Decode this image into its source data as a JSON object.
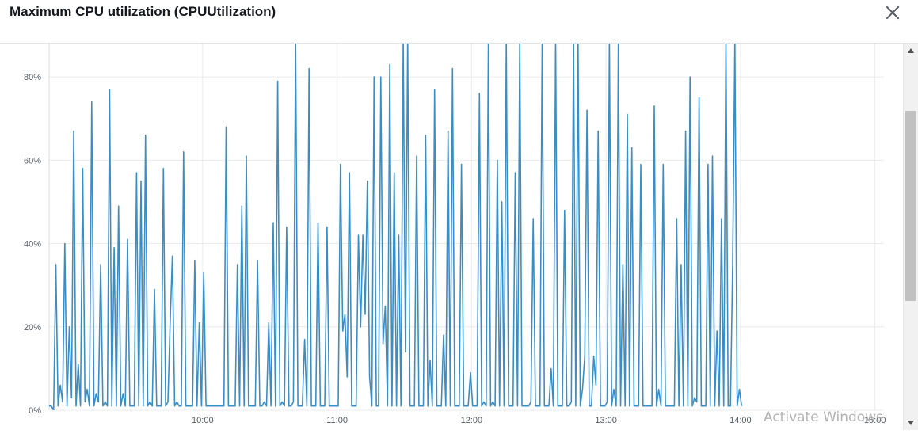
{
  "header": {
    "title": "Maximum CPU utilization (CPUUtilization)",
    "close_icon": "close-icon"
  },
  "watermark": "Activate Windows",
  "colors": {
    "line": "#3a8ec6",
    "grid": "#ebebeb",
    "axis_text": "#545b64"
  },
  "chart_data": {
    "type": "line",
    "title": "",
    "xlabel": "",
    "ylabel": "",
    "x_unit": "minutes",
    "x_ticks": [
      {
        "label": "10:00",
        "x": 600
      },
      {
        "label": "11:00",
        "x": 660
      },
      {
        "label": "12:00",
        "x": 720
      },
      {
        "label": "13:00",
        "x": 780
      },
      {
        "label": "14:00",
        "x": 840
      },
      {
        "label": "15:00",
        "x": 900
      }
    ],
    "y_ticks": [
      {
        "label": "0%",
        "y": 0
      },
      {
        "label": "20%",
        "y": 20
      },
      {
        "label": "40%",
        "y": 40
      },
      {
        "label": "60%",
        "y": 60
      },
      {
        "label": "80%",
        "y": 80
      }
    ],
    "xlim": [
      531.5,
      904
    ],
    "ylim": [
      0,
      88
    ],
    "grid": true,
    "legend": "none",
    "series": [
      {
        "values": [
          [
            531.5,
            1
          ],
          [
            532.5,
            1
          ],
          [
            533.5,
            0
          ],
          [
            534.5,
            35
          ],
          [
            535.5,
            1
          ],
          [
            536.5,
            6
          ],
          [
            537.5,
            2
          ],
          [
            538.5,
            40
          ],
          [
            539.5,
            1
          ],
          [
            540.5,
            20
          ],
          [
            541.5,
            3
          ],
          [
            542.5,
            67
          ],
          [
            543.5,
            1
          ],
          [
            544.5,
            11
          ],
          [
            545.5,
            1
          ],
          [
            546.5,
            58
          ],
          [
            547.5,
            2
          ],
          [
            548.5,
            5
          ],
          [
            549.5,
            1
          ],
          [
            550.5,
            74
          ],
          [
            551.5,
            1
          ],
          [
            552.5,
            4
          ],
          [
            553.5,
            2
          ],
          [
            554.5,
            35
          ],
          [
            555.5,
            1
          ],
          [
            556.5,
            2
          ],
          [
            557.5,
            1
          ],
          [
            558.5,
            77
          ],
          [
            559.5,
            1
          ],
          [
            560.5,
            39
          ],
          [
            561.5,
            1
          ],
          [
            562.5,
            49
          ],
          [
            563.5,
            1
          ],
          [
            564.5,
            4
          ],
          [
            565.5,
            1
          ],
          [
            566.5,
            41
          ],
          [
            567.5,
            1
          ],
          [
            568.5,
            1
          ],
          [
            569.5,
            1
          ],
          [
            570.5,
            57
          ],
          [
            571.5,
            1
          ],
          [
            572.5,
            55
          ],
          [
            573.5,
            1
          ],
          [
            574.5,
            66
          ],
          [
            575.5,
            1
          ],
          [
            576.5,
            2
          ],
          [
            577.5,
            1
          ],
          [
            578.5,
            29
          ],
          [
            579.5,
            1
          ],
          [
            580.5,
            1
          ],
          [
            581.5,
            1
          ],
          [
            582.5,
            58
          ],
          [
            583.5,
            1
          ],
          [
            584.5,
            2
          ],
          [
            585.5,
            21
          ],
          [
            586.5,
            37
          ],
          [
            587.5,
            1
          ],
          [
            588.5,
            2
          ],
          [
            589.5,
            1
          ],
          [
            590.5,
            1
          ],
          [
            591.5,
            62
          ],
          [
            592.5,
            1
          ],
          [
            593.5,
            1
          ],
          [
            594.5,
            1
          ],
          [
            595.5,
            1
          ],
          [
            596.5,
            36
          ],
          [
            597.5,
            1
          ],
          [
            598.5,
            21
          ],
          [
            599.5,
            1
          ],
          [
            600.5,
            33
          ],
          [
            601.5,
            1
          ],
          [
            602.5,
            1
          ],
          [
            603.5,
            1
          ],
          [
            604.5,
            1
          ],
          [
            605.5,
            1
          ],
          [
            606.5,
            1
          ],
          [
            607.5,
            1
          ],
          [
            608.5,
            1
          ],
          [
            609.5,
            1
          ],
          [
            610.5,
            68
          ],
          [
            611.5,
            1
          ],
          [
            612.5,
            1
          ],
          [
            613.5,
            1
          ],
          [
            614.5,
            1
          ],
          [
            615.5,
            35
          ],
          [
            616.5,
            1
          ],
          [
            617.5,
            49
          ],
          [
            618.5,
            1
          ],
          [
            619.5,
            61
          ],
          [
            620.5,
            1
          ],
          [
            621.5,
            1
          ],
          [
            622.5,
            1
          ],
          [
            623.5,
            1
          ],
          [
            624.5,
            36
          ],
          [
            625.5,
            1
          ],
          [
            626.5,
            1
          ],
          [
            627.5,
            2
          ],
          [
            628.5,
            1
          ],
          [
            629.5,
            21
          ],
          [
            630.5,
            1
          ],
          [
            631.5,
            45
          ],
          [
            632.5,
            1
          ],
          [
            633.5,
            79
          ],
          [
            634.5,
            1
          ],
          [
            635.5,
            2
          ],
          [
            636.5,
            1
          ],
          [
            637.5,
            44
          ],
          [
            638.5,
            1
          ],
          [
            639.5,
            1
          ],
          [
            640.5,
            2
          ],
          [
            641.5,
            89
          ],
          [
            642.5,
            1
          ],
          [
            643.5,
            1
          ],
          [
            644.5,
            1
          ],
          [
            645.5,
            17
          ],
          [
            646.5,
            1
          ],
          [
            647.5,
            82
          ],
          [
            648.5,
            1
          ],
          [
            649.5,
            1
          ],
          [
            650.5,
            1
          ],
          [
            651.5,
            45
          ],
          [
            652.5,
            1
          ],
          [
            653.5,
            1
          ],
          [
            654.5,
            1
          ],
          [
            655.5,
            44
          ],
          [
            656.5,
            1
          ],
          [
            657.5,
            1
          ],
          [
            658.5,
            1
          ],
          [
            659.5,
            1
          ],
          [
            660.5,
            1
          ],
          [
            661.5,
            59
          ],
          [
            662.5,
            19
          ],
          [
            663.5,
            23
          ],
          [
            664.5,
            8
          ],
          [
            665.5,
            57
          ],
          [
            666.5,
            1
          ],
          [
            667.5,
            1
          ],
          [
            668.5,
            1
          ],
          [
            669.5,
            42
          ],
          [
            670.5,
            20
          ],
          [
            671.5,
            42
          ],
          [
            672.5,
            23
          ],
          [
            673.5,
            55
          ],
          [
            674.5,
            8
          ],
          [
            675.5,
            1
          ],
          [
            676.5,
            80
          ],
          [
            677.5,
            1
          ],
          [
            678.5,
            1
          ],
          [
            679.5,
            80
          ],
          [
            680.5,
            16
          ],
          [
            681.5,
            25
          ],
          [
            682.5,
            1
          ],
          [
            683.5,
            83
          ],
          [
            684.5,
            1
          ],
          [
            685.5,
            57
          ],
          [
            686.5,
            1
          ],
          [
            687.5,
            42
          ],
          [
            688.5,
            1
          ],
          [
            689.5,
            89
          ],
          [
            690.5,
            14
          ],
          [
            691.5,
            89
          ],
          [
            692.5,
            1
          ],
          [
            693.5,
            1
          ],
          [
            694.5,
            1
          ],
          [
            695.5,
            61
          ],
          [
            696.5,
            1
          ],
          [
            697.5,
            1
          ],
          [
            698.5,
            1
          ],
          [
            699.5,
            66
          ],
          [
            700.5,
            1
          ],
          [
            701.5,
            12
          ],
          [
            702.5,
            1
          ],
          [
            703.5,
            77
          ],
          [
            704.5,
            1
          ],
          [
            705.5,
            1
          ],
          [
            706.5,
            1
          ],
          [
            707.5,
            18
          ],
          [
            708.5,
            1
          ],
          [
            709.5,
            67
          ],
          [
            710.5,
            1
          ],
          [
            711.5,
            82
          ],
          [
            712.5,
            1
          ],
          [
            713.5,
            1
          ],
          [
            714.5,
            1
          ],
          [
            715.5,
            59
          ],
          [
            716.5,
            1
          ],
          [
            717.5,
            1
          ],
          [
            718.5,
            1
          ],
          [
            719.5,
            9
          ],
          [
            720.5,
            1
          ],
          [
            721.5,
            1
          ],
          [
            722.5,
            1
          ],
          [
            723.5,
            76
          ],
          [
            724.5,
            1
          ],
          [
            725.5,
            2
          ],
          [
            726.5,
            1
          ],
          [
            727.5,
            89
          ],
          [
            728.5,
            1
          ],
          [
            729.5,
            2
          ],
          [
            730.5,
            1
          ],
          [
            731.5,
            60
          ],
          [
            732.5,
            1
          ],
          [
            733.5,
            50
          ],
          [
            734.5,
            1
          ],
          [
            735.5,
            89
          ],
          [
            736.5,
            1
          ],
          [
            737.5,
            1
          ],
          [
            738.5,
            1
          ],
          [
            739.5,
            57
          ],
          [
            740.5,
            1
          ],
          [
            741.5,
            89
          ],
          [
            742.5,
            1
          ],
          [
            743.5,
            1
          ],
          [
            744.5,
            1
          ],
          [
            745.5,
            1
          ],
          [
            746.5,
            2
          ],
          [
            747.5,
            46
          ],
          [
            748.5,
            1
          ],
          [
            749.5,
            1
          ],
          [
            750.5,
            1
          ],
          [
            751.5,
            89
          ],
          [
            752.5,
            1
          ],
          [
            753.5,
            1
          ],
          [
            754.5,
            1
          ],
          [
            755.5,
            10
          ],
          [
            756.5,
            1
          ],
          [
            757.5,
            89
          ],
          [
            758.5,
            1
          ],
          [
            759.5,
            1
          ],
          [
            760.5,
            1
          ],
          [
            761.5,
            48
          ],
          [
            762.5,
            1
          ],
          [
            763.5,
            1
          ],
          [
            764.5,
            2
          ],
          [
            765.5,
            89
          ],
          [
            766.5,
            1
          ],
          [
            767.5,
            89
          ],
          [
            768.5,
            1
          ],
          [
            769.5,
            5
          ],
          [
            770.5,
            13
          ],
          [
            771.5,
            72
          ],
          [
            772.5,
            1
          ],
          [
            773.5,
            1
          ],
          [
            774.5,
            13
          ],
          [
            775.5,
            6
          ],
          [
            776.5,
            67
          ],
          [
            777.5,
            1
          ],
          [
            778.5,
            1
          ],
          [
            779.5,
            1
          ],
          [
            780.5,
            2
          ],
          [
            781.5,
            89
          ],
          [
            782.5,
            1
          ],
          [
            783.5,
            5
          ],
          [
            784.5,
            1
          ],
          [
            785.5,
            89
          ],
          [
            786.5,
            1
          ],
          [
            787.5,
            35
          ],
          [
            788.5,
            1
          ],
          [
            789.5,
            71
          ],
          [
            790.5,
            1
          ],
          [
            791.5,
            63
          ],
          [
            792.5,
            1
          ],
          [
            793.5,
            1
          ],
          [
            794.5,
            1
          ],
          [
            795.5,
            59
          ],
          [
            796.5,
            1
          ],
          [
            797.5,
            1
          ],
          [
            798.5,
            1
          ],
          [
            799.5,
            1
          ],
          [
            800.5,
            1
          ],
          [
            801.5,
            73
          ],
          [
            802.5,
            1
          ],
          [
            803.5,
            5
          ],
          [
            804.5,
            1
          ],
          [
            805.5,
            59
          ],
          [
            806.5,
            1
          ],
          [
            807.5,
            1
          ],
          [
            808.5,
            1
          ],
          [
            809.5,
            1
          ],
          [
            810.5,
            1
          ],
          [
            811.5,
            46
          ],
          [
            812.5,
            1
          ],
          [
            813.5,
            35
          ],
          [
            814.5,
            1
          ],
          [
            815.5,
            67
          ],
          [
            816.5,
            1
          ],
          [
            817.5,
            80
          ],
          [
            818.5,
            1
          ],
          [
            819.5,
            3
          ],
          [
            820.5,
            2
          ],
          [
            821.5,
            75
          ],
          [
            822.5,
            1
          ],
          [
            823.5,
            1
          ],
          [
            824.5,
            1
          ],
          [
            825.5,
            59
          ],
          [
            826.5,
            1
          ],
          [
            827.5,
            61
          ],
          [
            828.5,
            1
          ],
          [
            829.5,
            19
          ],
          [
            830.5,
            1
          ],
          [
            831.5,
            46
          ],
          [
            832.5,
            1
          ],
          [
            833.5,
            89
          ],
          [
            834.5,
            1
          ],
          [
            835.5,
            1
          ],
          [
            836.5,
            35
          ],
          [
            837.5,
            89
          ],
          [
            838.5,
            1
          ],
          [
            839.5,
            5
          ],
          [
            840.5,
            1
          ]
        ]
      }
    ]
  }
}
